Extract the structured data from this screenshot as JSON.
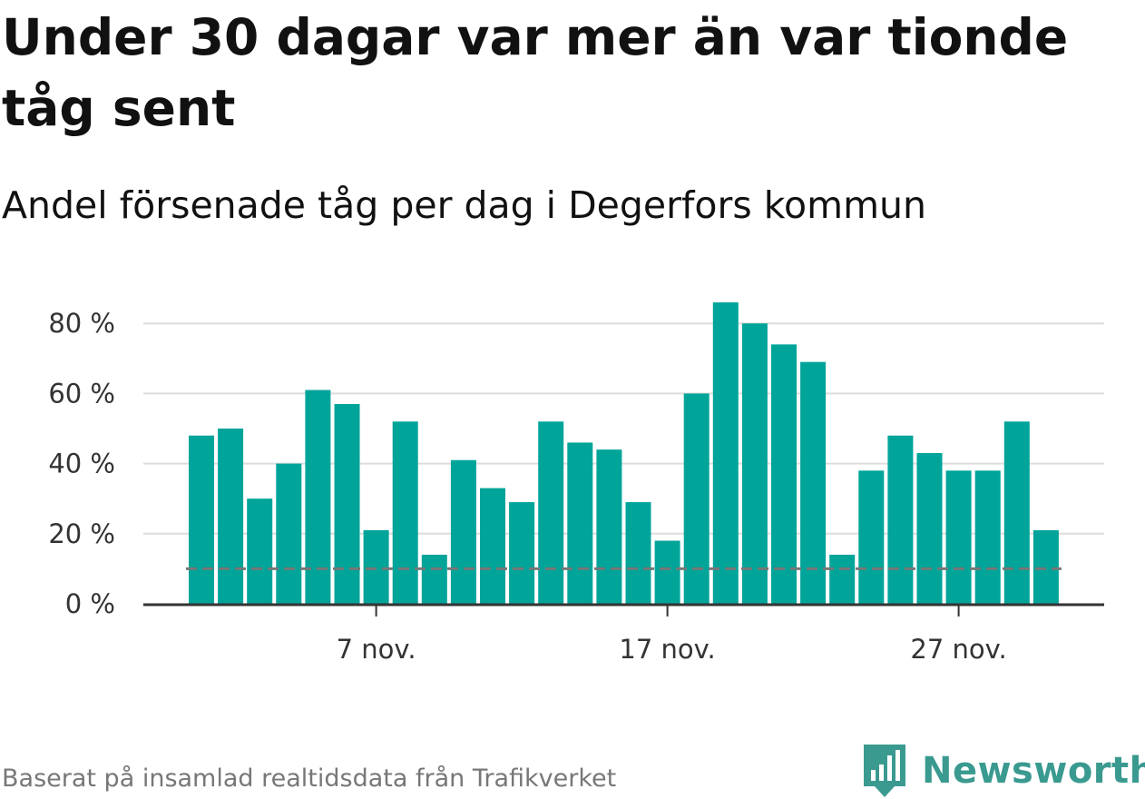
{
  "title": "Under 30 dagar var mer än var tionde tåg sent",
  "subtitle": "Andel försenade tåg per dag i Degerfors kommun",
  "source": "Baserat på insamlad realtidsdata från Trafikverket",
  "brand": {
    "name": "Newsworthy",
    "icon": "newsworthy-logo-icon",
    "color": "#3a9a90"
  },
  "chart_data": {
    "type": "bar",
    "title": "Under 30 dagar var mer än var tionde tåg sent",
    "subtitle": "Andel försenade tåg per dag i Degerfors kommun",
    "x": [
      "1 nov.",
      "2 nov.",
      "3 nov.",
      "4 nov.",
      "5 nov.",
      "6 nov.",
      "7 nov.",
      "8 nov.",
      "9 nov.",
      "10 nov.",
      "11 nov.",
      "12 nov.",
      "13 nov.",
      "14 nov.",
      "15 nov.",
      "16 nov.",
      "17 nov.",
      "18 nov.",
      "19 nov.",
      "20 nov.",
      "21 nov.",
      "22 nov.",
      "23 nov.",
      "24 nov.",
      "25 nov.",
      "26 nov.",
      "27 nov.",
      "28 nov.",
      "29 nov.",
      "30 nov."
    ],
    "x_tick_labels": [
      "7 nov.",
      "17 nov.",
      "27 nov."
    ],
    "values": [
      48,
      50,
      30,
      40,
      61,
      57,
      21,
      52,
      14,
      41,
      33,
      29,
      52,
      46,
      44,
      29,
      18,
      60,
      86,
      80,
      74,
      69,
      14,
      38,
      48,
      43,
      38,
      38,
      52,
      21
    ],
    "reference_line": 10,
    "y_tick_labels": [
      "0 %",
      "20 %",
      "40 %",
      "60 %",
      "80 %"
    ],
    "y_ticks": [
      0,
      20,
      40,
      60,
      80
    ],
    "ylim": [
      0,
      88
    ],
    "xlabel": "",
    "ylabel": "",
    "grid": true,
    "bar_color": "#00a499",
    "reference_color": "#777777"
  }
}
